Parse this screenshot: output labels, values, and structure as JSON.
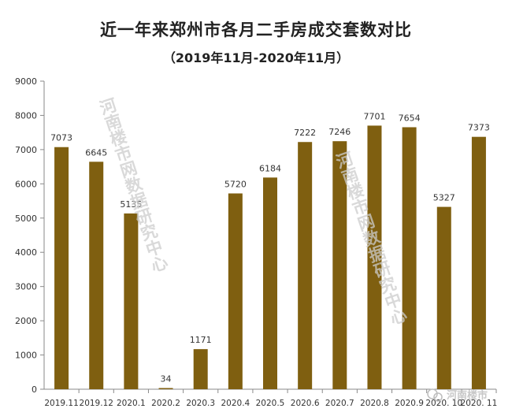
{
  "chart_data": {
    "type": "bar",
    "title": "近一年来郑州市各月二手房成交套数对比",
    "subtitle": "（2019年11月-2020年11月）",
    "categories": [
      "2019.11",
      "2019.12",
      "2020.1",
      "2020.2",
      "2020.3",
      "2020.4",
      "2020.5",
      "2020.6",
      "2020.7",
      "2020.8",
      "2020.9",
      "2020. 10",
      "2020. 11"
    ],
    "values": [
      7073,
      6645,
      5135,
      34,
      1171,
      5720,
      6184,
      7222,
      7246,
      7701,
      7654,
      5327,
      7373
    ],
    "ylim": [
      0,
      9000
    ],
    "yticks": [
      0,
      1000,
      2000,
      3000,
      4000,
      5000,
      6000,
      7000,
      8000,
      9000
    ],
    "xlabel": "",
    "ylabel": "",
    "grid": false,
    "bar_color": "#7f5f10",
    "watermarks": [
      "河南楼市网数据研究中心",
      "河南楼市网数据研究中心"
    ],
    "logo_text": "河南楼市"
  }
}
